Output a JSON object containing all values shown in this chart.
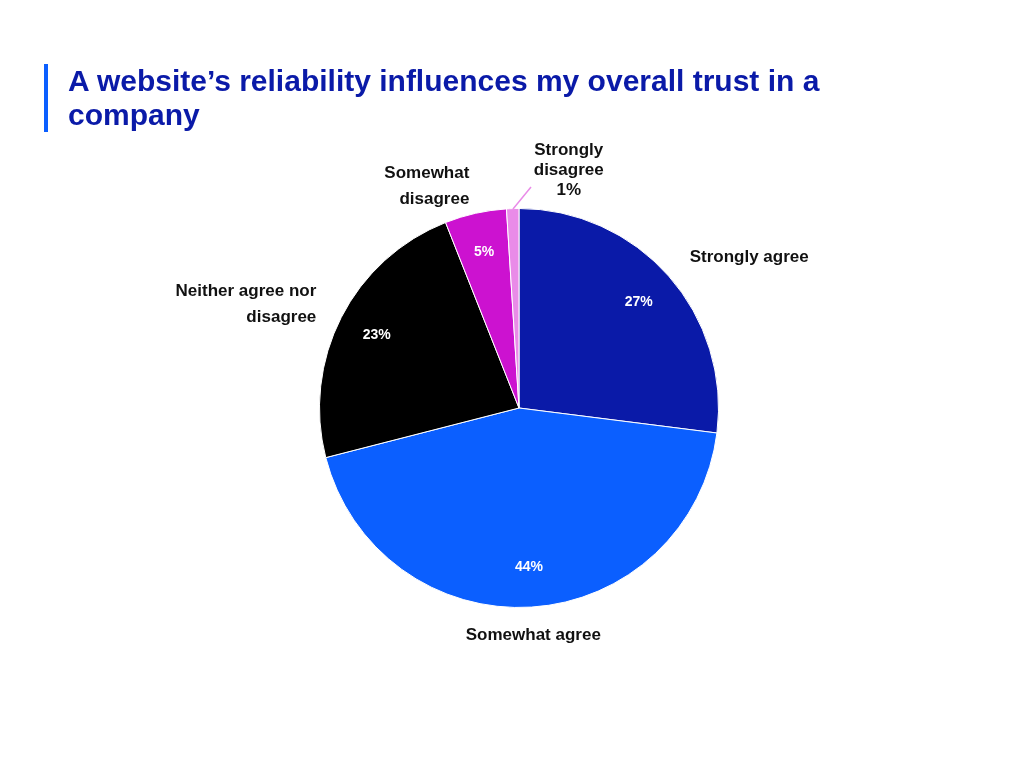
{
  "chart_data": {
    "type": "pie",
    "title": "A website’s reliability influences my overall trust in a company",
    "categories": [
      "Strongly agree",
      "Somewhat agree",
      "Neither agree nor disagree",
      "Somewhat disagree",
      "Strongly disagree"
    ],
    "values": [
      27,
      44,
      23,
      5,
      1
    ],
    "value_labels": [
      "27%",
      "44%",
      "23%",
      "5%",
      "1%"
    ],
    "colors": [
      "#0a1aa8",
      "#0b5fff",
      "#000000",
      "#cc12d0",
      "#e98be8"
    ]
  }
}
